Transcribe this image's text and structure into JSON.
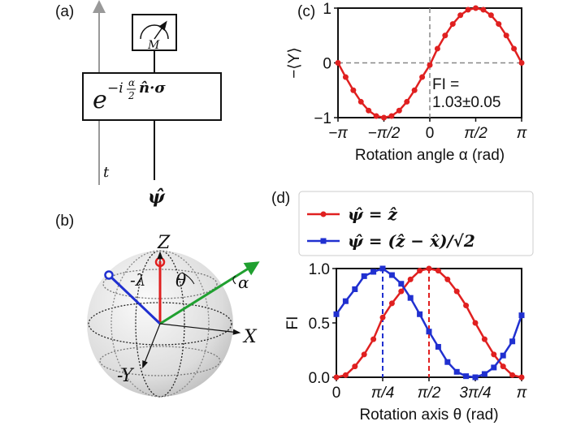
{
  "panels": {
    "a": {
      "label": "(a)",
      "time_axis_label": "t",
      "meter_label": "M",
      "gate": {
        "base": "e",
        "exp_prefix": "−i",
        "frac_num": "α",
        "frac_den": "2",
        "exp_suffix": "n̂·σ"
      },
      "input_state": "ψ̂"
    },
    "b": {
      "label": "(b)",
      "axes": {
        "z": "Z",
        "x": "X",
        "y": "-Y"
      },
      "angles": {
        "lambda": "-λ",
        "theta": "θ",
        "alpha": "α"
      },
      "colors": {
        "z_vector": "#e02020",
        "blue_vector": "#2030d0",
        "rotation_axis": "#20a030"
      }
    },
    "c": {
      "label": "(c)"
    },
    "d": {
      "label": "(d)"
    }
  },
  "chart_data": [
    {
      "type": "line",
      "panel": "c",
      "xlabel": "Rotation angle α (rad)",
      "ylabel": "−⟨Y⟩",
      "xlim": [
        -3.14159,
        3.14159
      ],
      "ylim": [
        -1,
        1
      ],
      "xticks": [
        "−π",
        "−π/2",
        "0",
        "π/2",
        "π"
      ],
      "yticks": [
        "−1",
        "0",
        "1"
      ],
      "grid": false,
      "reference_lines": "dashed gray at y=0 and x=0",
      "annotation": [
        "FI =",
        "1.03±0.05"
      ],
      "series": [
        {
          "color": "#e02020",
          "marker": "circle",
          "x_units": "π/12 steps from −π to π",
          "x": [
            -3.1416,
            -2.8798,
            -2.618,
            -2.3562,
            -2.0944,
            -1.8326,
            -1.5708,
            -1.309,
            -1.0472,
            -0.7854,
            -0.5236,
            -0.2618,
            0,
            0.2618,
            0.5236,
            0.7854,
            1.0472,
            1.309,
            1.5708,
            1.8326,
            2.0944,
            2.3562,
            2.618,
            2.8798,
            3.1416
          ],
          "values": [
            0,
            -0.26,
            -0.5,
            -0.71,
            -0.87,
            -0.97,
            -1,
            -0.97,
            -0.87,
            -0.71,
            -0.5,
            -0.26,
            -0.04,
            0.26,
            0.5,
            0.71,
            0.87,
            0.97,
            1,
            0.97,
            0.87,
            0.71,
            0.5,
            0.26,
            0
          ]
        }
      ]
    },
    {
      "type": "line",
      "panel": "d",
      "xlabel": "Rotation axis θ (rad)",
      "ylabel": "FI",
      "xlim": [
        0,
        3.14159
      ],
      "ylim": [
        0,
        1
      ],
      "xticks": [
        "0",
        "π/4",
        "π/2",
        "3π/4",
        "π"
      ],
      "yticks": [
        "0.0",
        "0.5",
        "1.0"
      ],
      "grid": false,
      "legend": "top, above plot",
      "reference_lines": "dashed blue at θ=π/4, dashed red at θ=π/2",
      "x": [
        0,
        0.1571,
        0.3142,
        0.4712,
        0.6283,
        0.7854,
        0.9425,
        1.0996,
        1.2566,
        1.4137,
        1.5708,
        1.7279,
        1.885,
        2.042,
        2.1991,
        2.3562,
        2.5133,
        2.6704,
        2.8274,
        2.9845,
        3.1416
      ],
      "series": [
        {
          "name": "ψ̂ = ẑ",
          "color": "#e02020",
          "marker": "circle",
          "values": [
            0,
            0.02,
            0.1,
            0.21,
            0.35,
            0.55,
            0.68,
            0.79,
            0.9,
            0.98,
            1,
            0.98,
            0.9,
            0.79,
            0.66,
            0.5,
            0.35,
            0.21,
            0.1,
            0.02,
            0
          ]
        },
        {
          "name": "ψ̂ = (ẑ − x̂)/√2",
          "color": "#2030d0",
          "marker": "square",
          "values": [
            0.58,
            0.7,
            0.81,
            0.93,
            0.97,
            1,
            0.94,
            0.86,
            0.73,
            0.58,
            0.42,
            0.28,
            0.14,
            0.05,
            0.01,
            0,
            0.03,
            0.09,
            0.2,
            0.33,
            0.57
          ]
        }
      ]
    }
  ]
}
